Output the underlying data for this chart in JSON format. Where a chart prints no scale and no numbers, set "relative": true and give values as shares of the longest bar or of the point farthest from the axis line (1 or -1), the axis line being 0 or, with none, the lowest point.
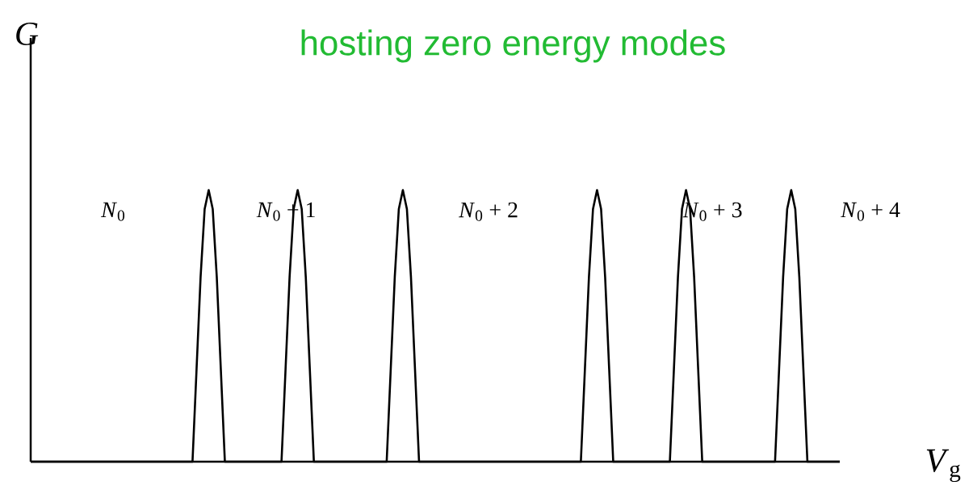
{
  "chart_data": {
    "type": "line",
    "title": "hosting zero energy modes",
    "xlabel": "*V*$_{g}$",
    "ylabel": "*G*",
    "relative": true,
    "tick_labels": false,
    "categories": [
      null,
      null,
      null,
      null,
      null,
      null,
      null,
      null,
      null,
      null,
      null,
      null,
      null,
      null,
      null,
      null,
      null,
      null,
      null,
      null,
      null,
      null,
      null,
      null,
      null,
      null,
      null,
      null,
      null,
      null,
      null,
      null,
      null,
      null,
      null,
      null,
      null,
      null,
      null,
      null,
      null,
      null,
      null,
      null,
      null,
      null,
      null,
      null,
      null,
      null,
      null,
      null,
      null,
      null,
      null,
      null,
      null,
      null,
      null,
      null,
      null,
      null,
      null,
      null,
      null,
      null,
      null,
      null,
      null,
      null,
      null,
      null,
      null,
      null,
      null,
      null,
      null,
      null,
      null,
      null,
      null,
      null,
      null,
      null,
      null,
      null,
      null,
      null,
      null,
      null,
      null,
      null,
      null,
      null,
      null,
      null,
      null,
      null,
      null,
      null,
      null,
      null,
      null,
      null,
      null,
      null,
      null,
      null,
      null,
      null,
      null,
      null,
      null,
      null,
      null,
      null,
      null,
      null,
      null,
      null,
      null,
      null,
      null,
      null,
      null,
      null,
      null,
      null,
      null,
      null,
      null,
      null,
      null,
      null,
      null,
      null,
      null,
      null,
      null,
      null,
      null,
      null,
      null,
      null,
      null,
      null,
      null,
      null,
      null,
      null,
      null,
      null,
      null,
      null,
      null,
      null,
      null,
      null,
      null,
      null,
      null,
      null,
      null,
      null,
      null,
      null,
      null,
      null,
      null,
      null,
      null,
      null,
      null,
      null,
      null,
      null,
      null,
      null,
      null,
      null,
      null,
      null,
      null,
      null,
      null,
      null,
      null,
      null,
      null,
      null,
      null,
      null,
      null,
      null,
      null,
      null,
      null,
      null,
      null,
      null,
      null
    ],
    "series": [
      {
        "color": "#000000",
        "values": [
          0,
          0,
          0,
          0,
          0,
          0,
          0,
          0,
          0,
          0,
          0,
          0,
          0,
          0,
          0,
          0,
          0,
          0,
          0,
          0,
          0,
          0,
          0,
          0,
          0,
          0,
          0,
          0,
          0,
          0,
          0,
          0,
          0,
          0,
          0,
          0,
          0,
          0,
          0,
          0,
          0,
          0.34,
          0.68,
          0.93,
          1,
          0.93,
          0.68,
          0.34,
          0,
          0,
          0,
          0,
          0,
          0,
          0,
          0,
          0,
          0,
          0,
          0,
          0,
          0,
          0,
          0.34,
          0.68,
          0.93,
          1,
          0.93,
          0.68,
          0.34,
          0,
          0,
          0,
          0,
          0,
          0,
          0,
          0,
          0,
          0,
          0,
          0,
          0,
          0,
          0,
          0,
          0,
          0,
          0,
          0.34,
          0.68,
          0.93,
          1,
          0.93,
          0.68,
          0.34,
          0,
          0,
          0,
          0,
          0,
          0,
          0,
          0,
          0,
          0,
          0,
          0,
          0,
          0,
          0,
          0,
          0,
          0,
          0,
          0,
          0,
          0,
          0,
          0,
          0,
          0,
          0,
          0,
          0,
          0,
          0,
          0,
          0,
          0,
          0,
          0,
          0,
          0,
          0,
          0,
          0,
          0.34,
          0.68,
          0.93,
          1,
          0.93,
          0.68,
          0.34,
          0,
          0,
          0,
          0,
          0,
          0,
          0,
          0,
          0,
          0,
          0,
          0,
          0,
          0,
          0,
          0.34,
          0.68,
          0.93,
          1,
          0.93,
          0.68,
          0.34,
          0,
          0,
          0,
          0,
          0,
          0,
          0,
          0,
          0,
          0,
          0,
          0,
          0,
          0,
          0,
          0,
          0,
          0,
          0,
          0.34,
          0.68,
          0.93,
          1,
          0.93,
          0.68,
          0.34,
          0,
          0,
          0,
          0,
          0,
          0,
          0,
          0,
          0
        ]
      }
    ],
    "annotations": [
      "*N*$_{0}$",
      "*N*$_{0}$ + 1",
      "*N*$_{0}$ + 2",
      "*N*$_{0}$ + 3",
      "*N*$_{0}$ + 4"
    ]
  }
}
